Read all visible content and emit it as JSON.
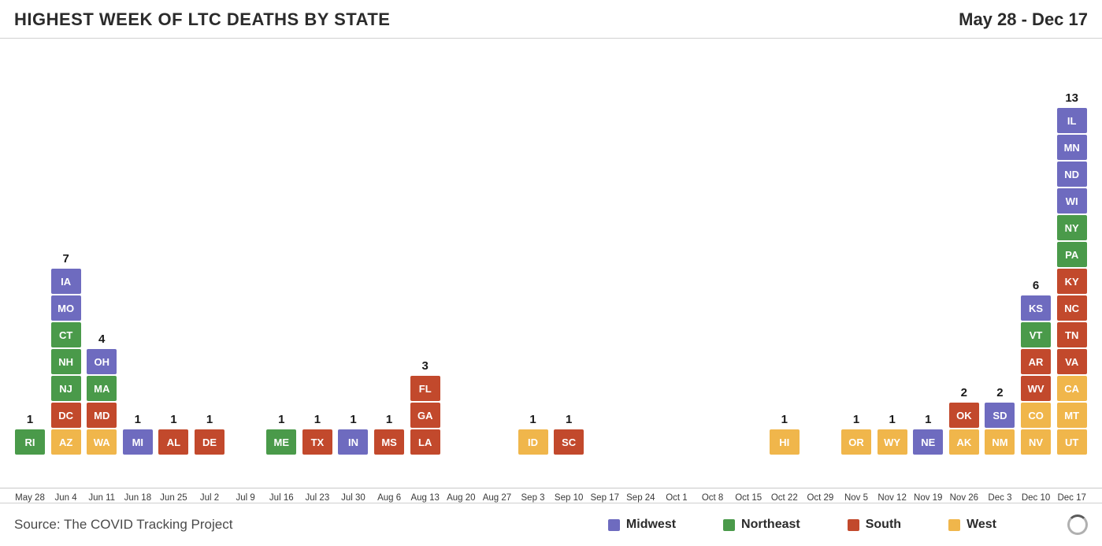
{
  "title": "HIGHEST WEEK OF LTC DEATHS BY STATE",
  "date_range": "May 28 - Dec 17",
  "source": "Source: The COVID Tracking Project",
  "region_colors": {
    "Midwest": "#6e6bbf",
    "Northeast": "#4a9a4a",
    "South": "#c2492c",
    "West": "#f0b64b"
  },
  "legend": [
    {
      "label": "Midwest",
      "region": "Midwest"
    },
    {
      "label": "Northeast",
      "region": "Northeast"
    },
    {
      "label": "South",
      "region": "South"
    },
    {
      "label": "West",
      "region": "West"
    }
  ],
  "cell": {
    "width": 38,
    "height": 32,
    "gap": 2,
    "fontsize": 13,
    "fontweight": 700,
    "text_color": "#ffffff"
  },
  "count_label": {
    "fontsize": 15,
    "fontweight": 700,
    "color": "#1a1a1a"
  },
  "xaxis_label": {
    "fontsize": 11.5,
    "color": "#3a3a3a"
  },
  "weeks": [
    {
      "label": "May 28",
      "states": [
        {
          "abbr": "RI",
          "region": "Northeast"
        }
      ]
    },
    {
      "label": "Jun 4",
      "states": [
        {
          "abbr": "IA",
          "region": "Midwest"
        },
        {
          "abbr": "MO",
          "region": "Midwest"
        },
        {
          "abbr": "CT",
          "region": "Northeast"
        },
        {
          "abbr": "NH",
          "region": "Northeast"
        },
        {
          "abbr": "NJ",
          "region": "Northeast"
        },
        {
          "abbr": "DC",
          "region": "South"
        },
        {
          "abbr": "AZ",
          "region": "West"
        }
      ]
    },
    {
      "label": "Jun 11",
      "states": [
        {
          "abbr": "OH",
          "region": "Midwest"
        },
        {
          "abbr": "MA",
          "region": "Northeast"
        },
        {
          "abbr": "MD",
          "region": "South"
        },
        {
          "abbr": "WA",
          "region": "West"
        }
      ]
    },
    {
      "label": "Jun 18",
      "states": [
        {
          "abbr": "MI",
          "region": "Midwest"
        }
      ]
    },
    {
      "label": "Jun 25",
      "states": [
        {
          "abbr": "AL",
          "region": "South"
        }
      ]
    },
    {
      "label": "Jul 2",
      "states": [
        {
          "abbr": "DE",
          "region": "South"
        }
      ]
    },
    {
      "label": "Jul 9",
      "states": []
    },
    {
      "label": "Jul 16",
      "states": [
        {
          "abbr": "ME",
          "region": "Northeast"
        }
      ]
    },
    {
      "label": "Jul 23",
      "states": [
        {
          "abbr": "TX",
          "region": "South"
        }
      ]
    },
    {
      "label": "Jul 30",
      "states": [
        {
          "abbr": "IN",
          "region": "Midwest"
        }
      ]
    },
    {
      "label": "Aug 6",
      "states": [
        {
          "abbr": "MS",
          "region": "South"
        }
      ]
    },
    {
      "label": "Aug 13",
      "states": [
        {
          "abbr": "FL",
          "region": "South"
        },
        {
          "abbr": "GA",
          "region": "South"
        },
        {
          "abbr": "LA",
          "region": "South"
        }
      ]
    },
    {
      "label": "Aug 20",
      "states": []
    },
    {
      "label": "Aug 27",
      "states": []
    },
    {
      "label": "Sep 3",
      "states": [
        {
          "abbr": "ID",
          "region": "West"
        }
      ]
    },
    {
      "label": "Sep 10",
      "states": [
        {
          "abbr": "SC",
          "region": "South"
        }
      ]
    },
    {
      "label": "Sep 17",
      "states": []
    },
    {
      "label": "Sep 24",
      "states": []
    },
    {
      "label": "Oct 1",
      "states": []
    },
    {
      "label": "Oct 8",
      "states": []
    },
    {
      "label": "Oct 15",
      "states": []
    },
    {
      "label": "Oct 22",
      "states": [
        {
          "abbr": "HI",
          "region": "West"
        }
      ]
    },
    {
      "label": "Oct 29",
      "states": []
    },
    {
      "label": "Nov 5",
      "states": [
        {
          "abbr": "OR",
          "region": "West"
        }
      ]
    },
    {
      "label": "Nov 12",
      "states": [
        {
          "abbr": "WY",
          "region": "West"
        }
      ]
    },
    {
      "label": "Nov 19",
      "states": [
        {
          "abbr": "NE",
          "region": "Midwest"
        }
      ]
    },
    {
      "label": "Nov 26",
      "states": [
        {
          "abbr": "OK",
          "region": "South"
        },
        {
          "abbr": "AK",
          "region": "West"
        }
      ]
    },
    {
      "label": "Dec 3",
      "states": [
        {
          "abbr": "SD",
          "region": "Midwest"
        },
        {
          "abbr": "NM",
          "region": "West"
        }
      ]
    },
    {
      "label": "Dec 10",
      "states": [
        {
          "abbr": "KS",
          "region": "Midwest"
        },
        {
          "abbr": "VT",
          "region": "Northeast"
        },
        {
          "abbr": "AR",
          "region": "South"
        },
        {
          "abbr": "WV",
          "region": "South"
        },
        {
          "abbr": "CO",
          "region": "West"
        },
        {
          "abbr": "NV",
          "region": "West"
        }
      ]
    },
    {
      "label": "Dec 17",
      "states": [
        {
          "abbr": "IL",
          "region": "Midwest"
        },
        {
          "abbr": "MN",
          "region": "Midwest"
        },
        {
          "abbr": "ND",
          "region": "Midwest"
        },
        {
          "abbr": "WI",
          "region": "Midwest"
        },
        {
          "abbr": "NY",
          "region": "Northeast"
        },
        {
          "abbr": "PA",
          "region": "Northeast"
        },
        {
          "abbr": "KY",
          "region": "South"
        },
        {
          "abbr": "NC",
          "region": "South"
        },
        {
          "abbr": "TN",
          "region": "South"
        },
        {
          "abbr": "VA",
          "region": "South"
        },
        {
          "abbr": "CA",
          "region": "West"
        },
        {
          "abbr": "MT",
          "region": "West"
        },
        {
          "abbr": "UT",
          "region": "West"
        }
      ]
    }
  ]
}
